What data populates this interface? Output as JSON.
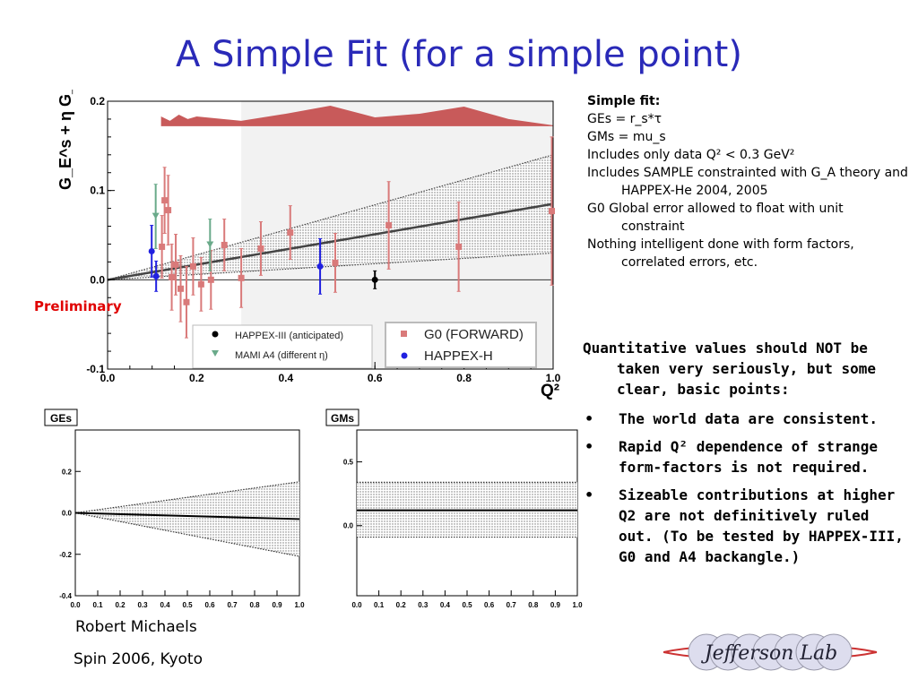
{
  "slide": {
    "title": "A Simple Fit (for a simple point)",
    "preliminary": "Preliminary",
    "author": "Robert  Michaels",
    "conference": "Spin 2006,  Kyoto",
    "logo_text": "Jefferson Lab"
  },
  "notes": {
    "heading": "Simple fit:",
    "items": [
      "GEs = r_s*τ",
      "GMs = mu_s",
      "Includes only data Q² < 0.3 GeV²",
      "Includes SAMPLE constrainted with G_A theory and HAPPEX-He 2004, 2005",
      "G0 Global error allowed to float with unit constraint",
      "Nothing intelligent done with form factors, correlated errors, etc."
    ]
  },
  "points": {
    "intro": "Quantitative values should NOT be taken very seriously, but some clear, basic points:",
    "bullets": [
      "The world data are consistent.",
      "Rapid Q² dependence of strange form-factors is not required.",
      "Sizeable contributions at higher Q2 are not definitively ruled out. (To be tested by HAPPEX-III, G0 and A4 backangle.)"
    ],
    "bullet_symbol": "•"
  },
  "chart_data": [
    {
      "type": "scatter",
      "ylabel": "G_E^s + η G_M^s",
      "xlabel": "Q²",
      "xlim": [
        0.0,
        1.0
      ],
      "ylim": [
        -0.1,
        0.2
      ],
      "xticks": [
        "0.0",
        "0.2",
        "0.4",
        "0.6",
        "0.8",
        "1.0"
      ],
      "yticks": [
        "-0.1",
        "0.0",
        "0.1",
        "0.2"
      ],
      "fit": {
        "slope": 0.085,
        "band_upper_slope": 0.14,
        "band_lower_slope": 0.03
      },
      "systematic_band": [
        [
          0.12,
          0.183
        ],
        [
          0.14,
          0.178
        ],
        [
          0.16,
          0.185
        ],
        [
          0.18,
          0.18
        ],
        [
          0.2,
          0.183
        ],
        [
          0.3,
          0.178
        ],
        [
          0.4,
          0.186
        ],
        [
          0.5,
          0.195
        ],
        [
          0.6,
          0.182
        ],
        [
          0.7,
          0.186
        ],
        [
          0.75,
          0.19
        ],
        [
          0.8,
          0.194
        ],
        [
          0.9,
          0.18
        ],
        [
          1.0,
          0.173
        ]
      ],
      "series": [
        {
          "name": "G0 (FORWARD)",
          "color": "#d97a7a",
          "marker": "square",
          "points": [
            [
              0.122,
              0.037,
              0.035
            ],
            [
              0.128,
              0.089,
              0.037
            ],
            [
              0.136,
              0.078,
              0.039
            ],
            [
              0.144,
              0.003,
              0.037
            ],
            [
              0.153,
              0.017,
              0.034
            ],
            [
              0.164,
              -0.01,
              0.037
            ],
            [
              0.177,
              -0.025,
              0.04
            ],
            [
              0.192,
              0.015,
              0.032
            ],
            [
              0.21,
              -0.005,
              0.03
            ],
            [
              0.232,
              0.0,
              0.033
            ],
            [
              0.262,
              0.039,
              0.029
            ],
            [
              0.3,
              0.002,
              0.033
            ],
            [
              0.344,
              0.035,
              0.03
            ],
            [
              0.41,
              0.053,
              0.03
            ],
            [
              0.511,
              0.019,
              0.033
            ],
            [
              0.631,
              0.061,
              0.049
            ],
            [
              0.788,
              0.037,
              0.05
            ],
            [
              0.997,
              0.077,
              0.083
            ]
          ]
        },
        {
          "name": "HAPPEX-H",
          "color": "#2020e0",
          "marker": "circle",
          "points": [
            [
              0.099,
              0.032,
              0.029
            ],
            [
              0.109,
              0.004,
              0.017
            ],
            [
              0.477,
              0.015,
              0.031
            ]
          ]
        },
        {
          "name": "MAMI A4 (different η)",
          "color": "#6aaa8a",
          "marker": "triangle-down",
          "points": [
            [
              0.108,
              0.071,
              0.036
            ],
            [
              0.23,
              0.039,
              0.029
            ]
          ]
        },
        {
          "name": "HAPPEX-III (anticipated)",
          "color": "#000000",
          "marker": "circle",
          "points": [
            [
              0.6,
              0.0,
              0.01
            ]
          ]
        }
      ]
    },
    {
      "type": "area",
      "title": "GEs",
      "xlim": [
        0.0,
        1.0
      ],
      "ylim": [
        -0.4,
        0.4
      ],
      "xticks": [
        "0.0",
        "0.1",
        "0.2",
        "0.3",
        "0.4",
        "0.5",
        "0.6",
        "0.7",
        "0.8",
        "0.9",
        "1.0"
      ],
      "yticks": [
        "-0.4",
        "-0.2",
        "0.0",
        "0.2"
      ],
      "central_end": -0.03,
      "upper_end": 0.15,
      "lower_end": -0.21
    },
    {
      "type": "area",
      "title": "GMs",
      "xlim": [
        0.0,
        1.0
      ],
      "ylim": [
        -0.55,
        0.75
      ],
      "xticks": [
        "0.0",
        "0.1",
        "0.2",
        "0.3",
        "0.4",
        "0.5",
        "0.6",
        "0.7",
        "0.8",
        "0.9",
        "1.0"
      ],
      "yticks": [
        "0.0",
        "0.5"
      ],
      "central": 0.12,
      "upper": 0.34,
      "lower": -0.09
    }
  ],
  "legend_groups": {
    "left_note": "(anticipated)",
    "right_note": "(FORWARD)"
  }
}
